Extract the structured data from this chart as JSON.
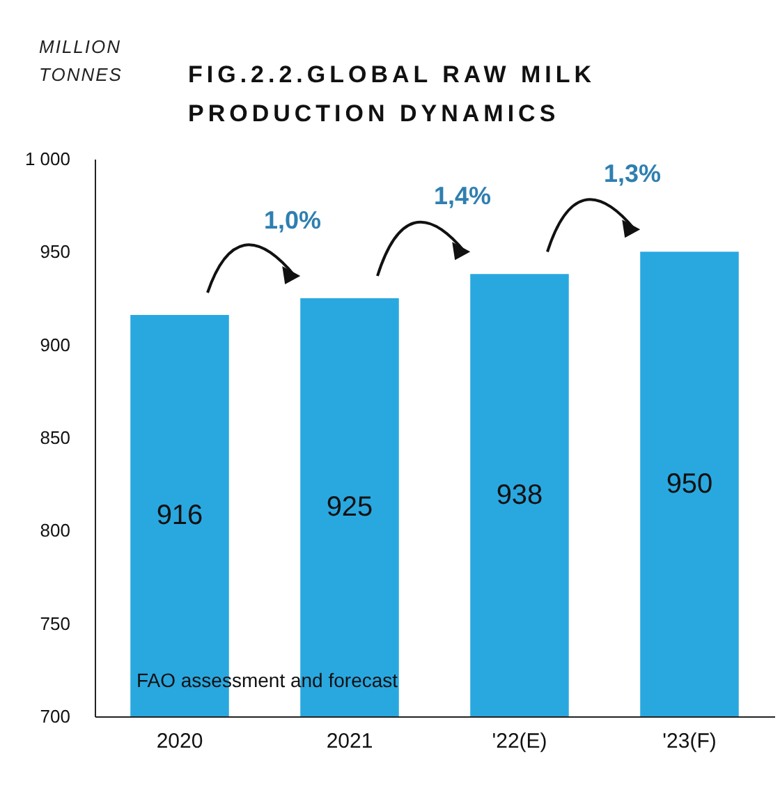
{
  "chart_data": {
    "type": "bar",
    "title": "FIG.2.2.GLOBAL RAW MILK PRODUCTION DYNAMICS",
    "ylabel": "MILLION TONNES",
    "categories": [
      "2020",
      "2021",
      "'22(E)",
      "'23(F)"
    ],
    "values": [
      916,
      925,
      938,
      950
    ],
    "color": "#29a8e0",
    "data_labels": true,
    "ylim": [
      700,
      1000
    ],
    "yticks": [
      700,
      750,
      800,
      850,
      900,
      950,
      {
        "value": 1000,
        "label": "1 000"
      }
    ],
    "grid": false,
    "annotations": [
      "1,0%",
      "1,4%",
      "1,3%",
      "FAO assessment and forecast"
    ]
  }
}
